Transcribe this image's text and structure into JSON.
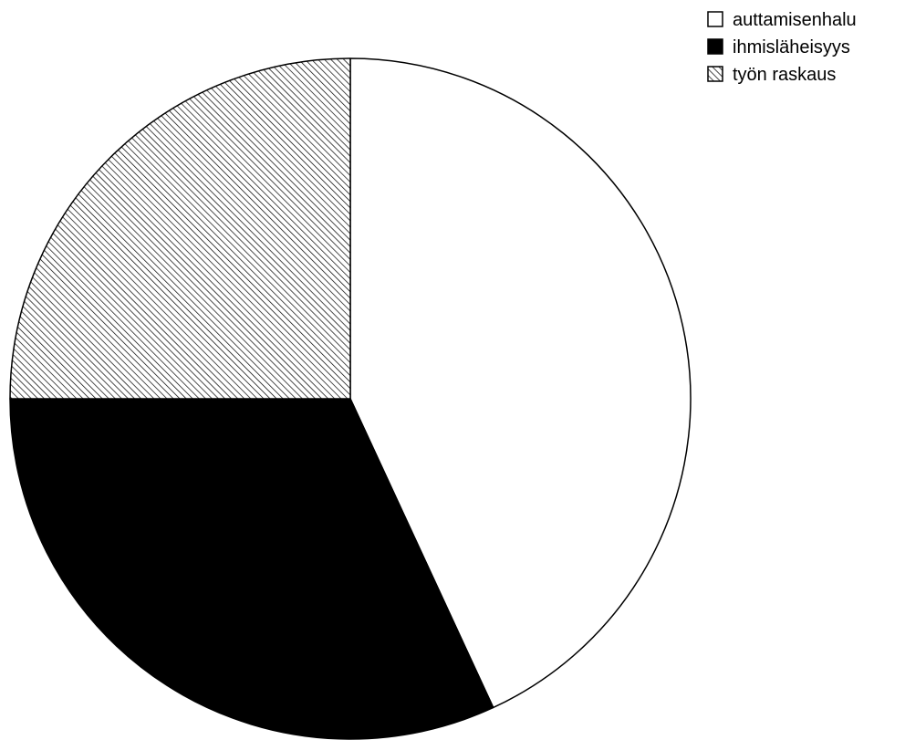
{
  "chart_data": {
    "type": "pie",
    "title": "",
    "slices": [
      {
        "label": "auttamisenhalu",
        "value": 43.1,
        "fill": "solid",
        "color": "#ffffff"
      },
      {
        "label": "ihmisläheisyys",
        "value": 31.9,
        "fill": "solid",
        "color": "#000000"
      },
      {
        "label": "työn raskaus",
        "value": 25.0,
        "fill": "hatch",
        "color": "#000000"
      }
    ],
    "start_angle_deg": 0,
    "direction": "clockwise",
    "legend_position": "top-right",
    "outline_color": "#000000"
  }
}
